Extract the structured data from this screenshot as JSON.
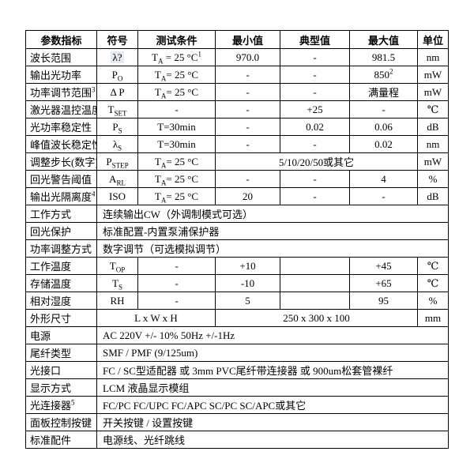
{
  "colors": {
    "background": "#ffffff",
    "border": "#000000",
    "text": "#000000",
    "field_shade": "#e3eaf1"
  },
  "table": {
    "headers": [
      "参数指标",
      "符号",
      "测试条件",
      "最小值",
      "典型值",
      "最大值",
      "单位"
    ],
    "rows": [
      {
        "label": "波长范围",
        "symbol": "λ?",
        "cond": "T_{A} = 25 °C^{1}",
        "min": "970.0",
        "typ": "-",
        "max": "981.5",
        "unit": "nm"
      },
      {
        "label": "输出光功率",
        "symbol": "P_{O}",
        "cond": "T_{A}= 25 °C",
        "min": "-",
        "typ": "-",
        "max": "850^{2}",
        "unit": "mW"
      },
      {
        "label": "功率调节范围^{3}",
        "symbol": "Δ P",
        "cond": "T_{A}= 25 °C",
        "min": "-",
        "typ": "-",
        "max": "满量程",
        "unit": "mW"
      },
      {
        "label": "激光器温控温度",
        "symbol": "T_{SET}",
        "cond": "-",
        "min": "-",
        "typ": "+25",
        "max": "-",
        "unit": "℃"
      },
      {
        "label": "光功率稳定性",
        "symbol": "P_{S}",
        "cond": "T=30min",
        "min": "-",
        "typ": "0.02",
        "max": "0.06",
        "unit": "dB"
      },
      {
        "label": "峰值波长稳定性",
        "symbol": "λ_{S}",
        "cond": "T=30min",
        "min": "-",
        "typ": "-",
        "max": "0.02",
        "unit": "nm"
      },
      {
        "label": "调整步长(数字)",
        "symbol": "P_{STEP}",
        "cond": "T_{A}= 25 °C",
        "range": "5/10/20/50或其它",
        "unit": "mW"
      },
      {
        "label": "回光警告阈值",
        "symbol": "A_{RL}",
        "cond": "T_{A}= 25 °C",
        "min": "-",
        "typ": "-",
        "max": "4",
        "unit": "%"
      },
      {
        "label": "输出光隔离度^{4}",
        "symbol": "ISO",
        "cond": "T_{A}= 25 °C",
        "min": "20",
        "typ": "-",
        "max": "-",
        "unit": "dB"
      },
      {
        "label": "工作方式",
        "value": "连续输出CW（外调制模式可选）"
      },
      {
        "label": "回光保护",
        "value": "标准配置-内置泵浦保护器"
      },
      {
        "label": "功率调整方式",
        "value": "数字调节（可选模拟调节）"
      },
      {
        "label": "工作温度",
        "symbol": "T_{OP}",
        "cond": "-",
        "min": "+10",
        "typ": "",
        "max": "+45",
        "unit": "℃"
      },
      {
        "label": "存储温度",
        "symbol": "T_{S}",
        "cond": "-",
        "min": "-10",
        "typ": "",
        "max": "+65",
        "unit": "℃"
      },
      {
        "label": "相对湿度",
        "symbol": "RH",
        "cond": "-",
        "min": "5",
        "typ": "",
        "max": "95",
        "unit": "%"
      },
      {
        "label": "外形尺寸",
        "dims_label": "L x W x H",
        "dims_value": "250 x 300 x 100",
        "unit": "mm"
      },
      {
        "label": "电源",
        "value": "AC 220V +/- 10% 50Hz +/-1Hz"
      },
      {
        "label": "尾纤类型",
        "value": "SMF / PMF (9/125um)"
      },
      {
        "label": "光接口",
        "value": "FC / SC型适配器  或  3mm PVC尾纤带连接器  或  900um松套管裸纤"
      },
      {
        "label": "显示方式",
        "value": "LCM 液晶显示模组"
      },
      {
        "label": "光连接器^{5}",
        "value": "FC/PC FC/UPC FC/APC SC/PC SC/APC或其它"
      },
      {
        "label": "面板控制按键",
        "value": "开关按键 / 设置按键"
      },
      {
        "label": "标准配件",
        "value": "电源线、光纤跳线"
      }
    ]
  }
}
